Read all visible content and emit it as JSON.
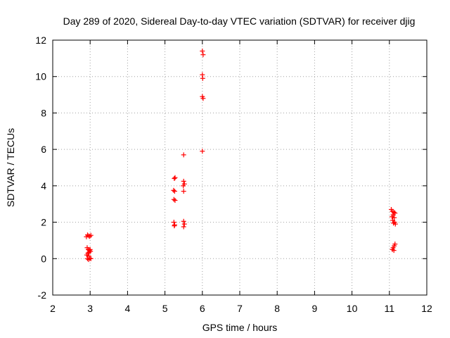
{
  "chart_data": {
    "type": "scatter",
    "title": "Day 289 of 2020, Sidereal Day-to-day VTEC variation (SDTVAR) for receiver djig",
    "xlabel": "GPS time / hours",
    "ylabel": "SDTVAR / TECUs",
    "xlim": [
      2,
      12
    ],
    "ylim": [
      -2,
      12
    ],
    "xticks": [
      "2",
      "3",
      "4",
      "5",
      "6",
      "7",
      "8",
      "9",
      "10",
      "11",
      "12"
    ],
    "yticks": [
      "-2",
      "0",
      "2",
      "4",
      "6",
      "8",
      "10",
      "12"
    ],
    "grid": true,
    "marker": "plus",
    "series_color": "#ff0000",
    "series": [
      {
        "points": [
          [
            2.9,
            1.2
          ],
          [
            2.93,
            1.3
          ],
          [
            2.96,
            1.25
          ],
          [
            2.99,
            1.22
          ],
          [
            3.02,
            1.28
          ],
          [
            2.92,
            0.6
          ],
          [
            2.95,
            0.5
          ],
          [
            2.98,
            0.45
          ],
          [
            3.01,
            0.4
          ],
          [
            2.94,
            0.3
          ],
          [
            2.97,
            0.35
          ],
          [
            3.0,
            0.5
          ],
          [
            2.91,
            0.2
          ],
          [
            2.96,
            0.15
          ],
          [
            2.93,
            0.0
          ],
          [
            2.96,
            -0.05
          ],
          [
            2.99,
            0.02
          ],
          [
            3.02,
            0.0
          ],
          [
            5.25,
            4.4
          ],
          [
            5.27,
            4.45
          ],
          [
            5.23,
            3.75
          ],
          [
            5.26,
            3.7
          ],
          [
            5.24,
            3.25
          ],
          [
            5.27,
            3.2
          ],
          [
            5.24,
            2.0
          ],
          [
            5.26,
            1.85
          ],
          [
            5.25,
            1.8
          ],
          [
            5.5,
            5.7
          ],
          [
            5.5,
            4.25
          ],
          [
            5.52,
            4.1
          ],
          [
            5.49,
            4.0
          ],
          [
            5.5,
            3.7
          ],
          [
            5.5,
            2.05
          ],
          [
            5.52,
            1.9
          ],
          [
            5.5,
            1.75
          ],
          [
            6.0,
            11.4
          ],
          [
            6.02,
            11.2
          ],
          [
            6.0,
            10.1
          ],
          [
            6.01,
            9.9
          ],
          [
            6.0,
            8.9
          ],
          [
            6.02,
            8.8
          ],
          [
            6.0,
            5.9
          ],
          [
            11.05,
            2.7
          ],
          [
            11.08,
            2.6
          ],
          [
            11.12,
            2.55
          ],
          [
            11.15,
            2.5
          ],
          [
            11.1,
            2.4
          ],
          [
            11.07,
            2.3
          ],
          [
            11.13,
            2.25
          ],
          [
            11.09,
            2.1
          ],
          [
            11.14,
            2.0
          ],
          [
            11.11,
            1.95
          ],
          [
            11.16,
            1.9
          ],
          [
            11.15,
            0.8
          ],
          [
            11.13,
            0.7
          ],
          [
            11.1,
            0.6
          ],
          [
            11.08,
            0.5
          ],
          [
            11.12,
            0.45
          ]
        ]
      }
    ]
  }
}
